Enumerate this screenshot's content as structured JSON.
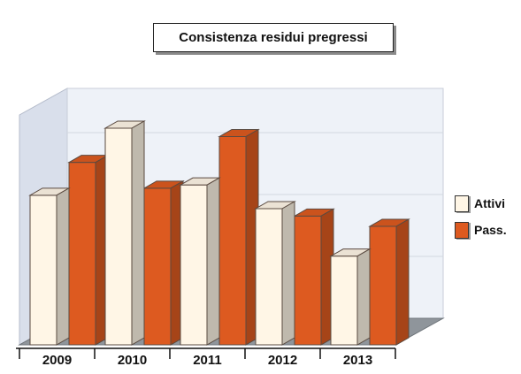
{
  "chart_data": {
    "type": "bar",
    "title": "Consistenza residui pregressi",
    "categories": [
      "2009",
      "2010",
      "2011",
      "2012",
      "2013"
    ],
    "series": [
      {
        "name": "Attivi",
        "values": [
          145,
          210,
          155,
          132,
          86
        ]
      },
      {
        "name": "Pass.",
        "values": [
          200,
          175,
          225,
          148,
          138
        ]
      }
    ],
    "ylim": [
      0,
      240
    ],
    "grid": true,
    "legend": "right",
    "colors": {
      "Attivi": "#fff6e6",
      "Pass.": "#dd5a20",
      "floor": "#8f959b",
      "back_wall": "#eef2f8"
    }
  }
}
